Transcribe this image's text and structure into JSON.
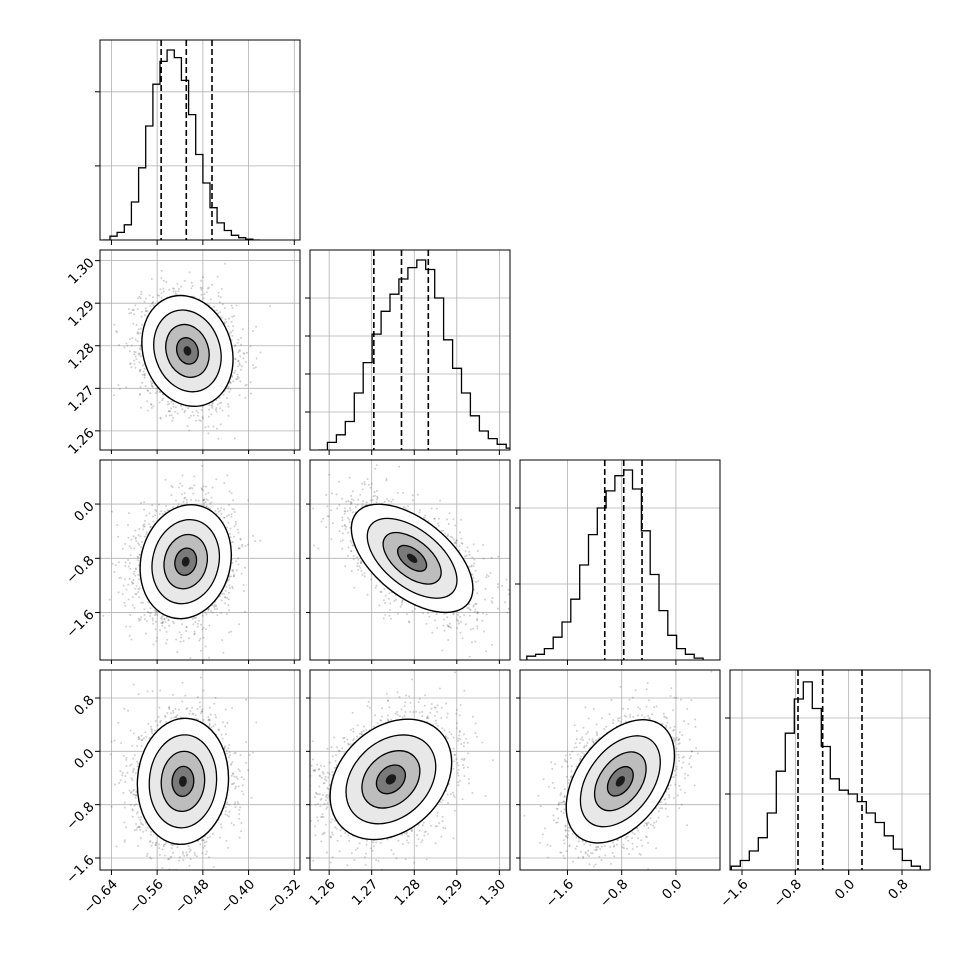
{
  "chart_data": {
    "type": "corner",
    "params": [
      {
        "range": [
          -0.66,
          -0.31
        ],
        "ticks": [
          -0.64,
          -0.56,
          -0.48,
          -0.4,
          -0.32
        ],
        "tick_labels": [
          "−0.64",
          "−0.56",
          "−0.48",
          "−0.40",
          "−0.32"
        ],
        "hist_yticks_frac": [
          0.39,
          0.78
        ],
        "quantiles": [
          -0.553,
          -0.509,
          -0.464
        ],
        "hist": {
          "start": -0.655,
          "width": 0.0125,
          "counts": [
            0,
            0.02,
            0.04,
            0.08,
            0.2,
            0.38,
            0.6,
            0.82,
            0.94,
            1.0,
            0.96,
            0.84,
            0.66,
            0.45,
            0.3,
            0.17,
            0.09,
            0.05,
            0.025,
            0.012,
            0.005,
            0
          ]
        }
      },
      {
        "range": [
          1.2555,
          1.3025
        ],
        "ticks": [
          1.26,
          1.27,
          1.28,
          1.29,
          1.3
        ],
        "tick_labels": [
          "1.26",
          "1.27",
          "1.28",
          "1.29",
          "1.30"
        ],
        "hist_yticks_frac": [
          0.2,
          0.4,
          0.6,
          0.8
        ],
        "quantiles": [
          1.2705,
          1.277,
          1.2833
        ],
        "hist": {
          "start": 1.2575,
          "width": 0.0021,
          "counts": [
            0,
            0.04,
            0.08,
            0.15,
            0.3,
            0.46,
            0.61,
            0.73,
            0.82,
            0.9,
            0.96,
            1.0,
            0.95,
            0.8,
            0.58,
            0.43,
            0.3,
            0.18,
            0.1,
            0.06,
            0.03,
            0.01
          ]
        }
      },
      {
        "range": [
          -2.3,
          0.65
        ],
        "ticks": [
          -1.6,
          -0.8,
          0.0
        ],
        "tick_labels": [
          "−1.6",
          "−0.8",
          "0.0"
        ],
        "hist_yticks_frac": [
          0.4,
          0.8
        ],
        "quantiles": [
          -1.05,
          -0.77,
          -0.5
        ],
        "hist": {
          "start": -2.2,
          "width": 0.13,
          "counts": [
            0.02,
            0.03,
            0.06,
            0.12,
            0.2,
            0.32,
            0.5,
            0.66,
            0.8,
            0.89,
            0.97,
            1.0,
            0.9,
            0.68,
            0.45,
            0.26,
            0.13,
            0.06,
            0.03,
            0.01
          ]
        }
      },
      {
        "range": [
          -1.78,
          1.22
        ],
        "ticks": [
          -1.6,
          -0.8,
          0.0,
          0.8
        ],
        "tick_labels": [
          "−1.6",
          "−0.8",
          "0.0",
          "0.8"
        ],
        "hist_yticks_frac": [
          0.4,
          0.8
        ],
        "quantiles": [
          -0.76,
          -0.39,
          0.2
        ],
        "hist": {
          "start": -1.76,
          "width": 0.135,
          "counts": [
            0.02,
            0.05,
            0.1,
            0.17,
            0.3,
            0.52,
            0.72,
            0.9,
            0.99,
            0.85,
            0.65,
            0.48,
            0.42,
            0.4,
            0.36,
            0.3,
            0.25,
            0.18,
            0.11,
            0.05,
            0.02,
            0.0
          ]
        }
      }
    ],
    "pairs": [
      {
        "col": 0,
        "row": 1,
        "center": [
          -0.507,
          1.2788
        ],
        "spread": [
          0.038,
          0.0062
        ],
        "corr": -0.15
      },
      {
        "col": 0,
        "row": 2,
        "center": [
          -0.51,
          -0.85
        ],
        "spread": [
          0.038,
          0.4
        ],
        "corr": 0.12
      },
      {
        "col": 1,
        "row": 2,
        "center": [
          1.2795,
          -0.8
        ],
        "spread": [
          0.0068,
          0.38
        ],
        "corr": -0.55
      },
      {
        "col": 0,
        "row": 3,
        "center": [
          -0.515,
          -0.45
        ],
        "spread": [
          0.038,
          0.45
        ],
        "corr": 0.05
      },
      {
        "col": 1,
        "row": 3,
        "center": [
          1.2745,
          -0.42
        ],
        "spread": [
          0.0068,
          0.43
        ],
        "corr": 0.28
      },
      {
        "col": 2,
        "row": 3,
        "center": [
          -0.82,
          -0.45
        ],
        "spread": [
          0.38,
          0.44
        ],
        "corr": 0.42
      }
    ],
    "grid": true,
    "line_style": "dashed quantile markers"
  }
}
